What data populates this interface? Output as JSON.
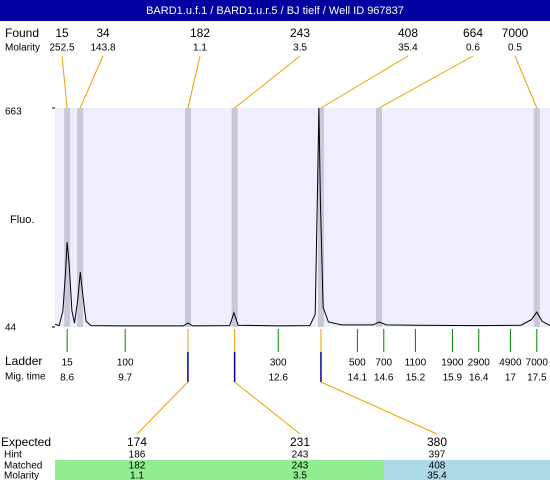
{
  "header": {
    "title": "BARD1.u.f.1 / BARD1.u.r.5 / BJ tielf / Well ID 967837"
  },
  "chart_data": {
    "type": "line",
    "ylabel": "Fluo.",
    "ylim": [
      44,
      663
    ],
    "yticks": [
      44,
      663
    ],
    "xlim": [
      8.37,
      17.75
    ],
    "color": "#000000",
    "x": [
      8.37,
      8.45,
      8.52,
      8.57,
      8.6,
      8.64,
      8.69,
      8.74,
      8.8,
      8.85,
      8.9,
      8.96,
      9.05,
      9.6,
      10.8,
      10.89,
      10.98,
      11.68,
      11.76,
      11.84,
      12.6,
      13.2,
      13.3,
      13.34,
      13.37,
      13.4,
      13.45,
      13.55,
      13.8,
      14.4,
      14.51,
      14.65,
      15.2,
      16.4,
      17.2,
      17.4,
      17.5,
      17.6,
      17.75
    ],
    "values": [
      52,
      48,
      90,
      200,
      284,
      220,
      90,
      55,
      120,
      199,
      130,
      60,
      48,
      47,
      47,
      55,
      47,
      48,
      84,
      49,
      47,
      48,
      80,
      400,
      663,
      400,
      100,
      58,
      50,
      50,
      58,
      50,
      49,
      48,
      49,
      65,
      86,
      60,
      48
    ]
  },
  "found": {
    "label": "Found",
    "sublabel": "Molarity",
    "sizes": [
      15,
      34,
      182,
      243,
      408,
      664,
      7000
    ],
    "molarity": [
      252.5,
      143.8,
      1.1,
      3.5,
      35.4,
      0.6,
      0.5
    ]
  },
  "ladder": {
    "label": "Ladder",
    "sublabel": "Mig. time",
    "sizes": [
      15,
      100,
      300,
      500,
      700,
      1100,
      1900,
      2900,
      4900,
      7000
    ],
    "times": [
      8.6,
      9.7,
      12.6,
      14.1,
      14.6,
      15.2,
      15.9,
      16.4,
      17,
      17.5
    ]
  },
  "expected": {
    "label": "Expected",
    "hint_label": "Hint",
    "matched_label": "Matched",
    "molarity_label": "Molarity",
    "found_index": [
      2,
      3,
      4
    ],
    "sizes": [
      174,
      231,
      380
    ],
    "hint": [
      186,
      243,
      397
    ],
    "matched": [
      182,
      243,
      408
    ],
    "molarity": [
      1.1,
      3.5,
      35.4
    ]
  }
}
